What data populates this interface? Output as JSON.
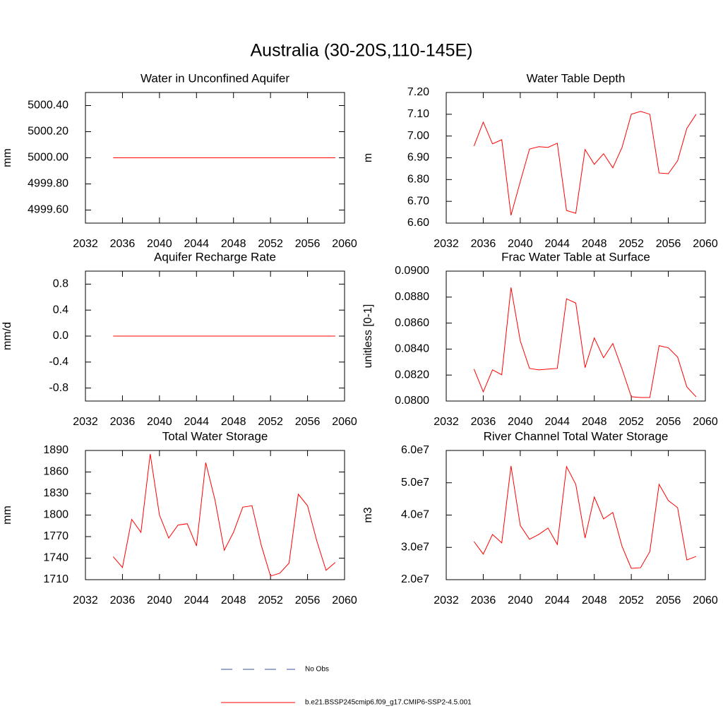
{
  "title": "Australia (30-20S,110-145E)",
  "legend": [
    {
      "name": "No Obs",
      "color": "#3b4fa0",
      "dashed": true
    },
    {
      "name": "b.e21.BSSP245cmip6.f09_g17.CMIP6-SSP2-4.5.001",
      "color": "#ff0000",
      "dashed": false
    }
  ],
  "chart_data": [
    {
      "type": "line",
      "title": "Water in Unconfined Aquifer",
      "y_label": "mm",
      "x": [
        2035,
        2036,
        2037,
        2038,
        2039,
        2040,
        2041,
        2042,
        2043,
        2044,
        2045,
        2046,
        2047,
        2048,
        2049,
        2050,
        2051,
        2052,
        2053,
        2054,
        2055,
        2056,
        2057,
        2058,
        2059
      ],
      "xlim": [
        2032,
        2060
      ],
      "xticks": [
        2032,
        2036,
        2040,
        2044,
        2048,
        2052,
        2056,
        2060
      ],
      "ylim": [
        4999.5,
        5000.5
      ],
      "yticks": [
        {
          "value": 4999.6,
          "label": "4999.60"
        },
        {
          "value": 4999.8,
          "label": "4999.80"
        },
        {
          "value": 5000.0,
          "label": "5000.00"
        },
        {
          "value": 5000.2,
          "label": "5000.20"
        },
        {
          "value": 5000.4,
          "label": "5000.40"
        }
      ],
      "series": [
        {
          "color": "#ff0000",
          "values": [
            5000,
            5000,
            5000,
            5000,
            5000,
            5000,
            5000,
            5000,
            5000,
            5000,
            5000,
            5000,
            5000,
            5000,
            5000,
            5000,
            5000,
            5000,
            5000,
            5000,
            5000,
            5000,
            5000,
            5000,
            5000
          ]
        }
      ]
    },
    {
      "type": "line",
      "title": "Water Table Depth",
      "y_label": "m",
      "x": [
        2035,
        2036,
        2037,
        2038,
        2039,
        2040,
        2041,
        2042,
        2043,
        2044,
        2045,
        2046,
        2047,
        2048,
        2049,
        2050,
        2051,
        2052,
        2053,
        2054,
        2055,
        2056,
        2057,
        2058,
        2059
      ],
      "xlim": [
        2032,
        2060
      ],
      "xticks": [
        2032,
        2036,
        2040,
        2044,
        2048,
        2052,
        2056,
        2060
      ],
      "ylim": [
        6.6,
        7.2
      ],
      "yticks": [
        {
          "value": 6.6,
          "label": "6.60"
        },
        {
          "value": 6.7,
          "label": "6.70"
        },
        {
          "value": 6.8,
          "label": "6.80"
        },
        {
          "value": 6.9,
          "label": "6.90"
        },
        {
          "value": 7.0,
          "label": "7.00"
        },
        {
          "value": 7.1,
          "label": "7.10"
        },
        {
          "value": 7.2,
          "label": "7.20"
        }
      ],
      "series": [
        {
          "color": "#ff0000",
          "values": [
            6.954,
            7.064,
            6.964,
            6.983,
            6.636,
            6.79,
            6.94,
            6.951,
            6.948,
            6.967,
            6.658,
            6.645,
            6.938,
            6.87,
            6.919,
            6.854,
            6.948,
            7.1,
            7.113,
            7.1,
            6.83,
            6.827,
            6.886,
            7.035,
            7.1
          ]
        }
      ]
    },
    {
      "type": "line",
      "title": "Aquifer Recharge Rate",
      "y_label": "mm/d",
      "x": [
        2035,
        2036,
        2037,
        2038,
        2039,
        2040,
        2041,
        2042,
        2043,
        2044,
        2045,
        2046,
        2047,
        2048,
        2049,
        2050,
        2051,
        2052,
        2053,
        2054,
        2055,
        2056,
        2057,
        2058,
        2059
      ],
      "xlim": [
        2032,
        2060
      ],
      "xticks": [
        2032,
        2036,
        2040,
        2044,
        2048,
        2052,
        2056,
        2060
      ],
      "ylim": [
        -1,
        1
      ],
      "yticks": [
        -0.8,
        -0.4,
        {
          "value": 0,
          "label": "0.0"
        },
        0.4,
        0.8
      ],
      "series": [
        {
          "color": "#ff0000",
          "values": [
            0,
            0,
            0,
            0,
            0,
            0,
            0,
            0,
            0,
            0,
            0,
            0,
            0,
            0,
            0,
            0,
            0,
            0,
            0,
            0,
            0,
            0,
            0,
            0,
            0
          ]
        }
      ]
    },
    {
      "type": "line",
      "title": "Frac Water Table at Surface",
      "y_label": "unitless [0-1]",
      "x": [
        2035,
        2036,
        2037,
        2038,
        2039,
        2040,
        2041,
        2042,
        2043,
        2044,
        2045,
        2046,
        2047,
        2048,
        2049,
        2050,
        2051,
        2052,
        2053,
        2054,
        2055,
        2056,
        2057,
        2058,
        2059
      ],
      "xlim": [
        2032,
        2060
      ],
      "xticks": [
        2032,
        2036,
        2040,
        2044,
        2048,
        2052,
        2056,
        2060
      ],
      "ylim": [
        0.08,
        0.09
      ],
      "yticks": [
        {
          "value": 0.08,
          "label": "0.0800"
        },
        {
          "value": 0.082,
          "label": "0.0820"
        },
        {
          "value": 0.084,
          "label": "0.0840"
        },
        {
          "value": 0.086,
          "label": "0.0860"
        },
        {
          "value": 0.088,
          "label": "0.0880"
        },
        {
          "value": 0.09,
          "label": "0.0900"
        }
      ],
      "series": [
        {
          "color": "#ff0000",
          "values": [
            0.08246,
            0.08071,
            0.0824,
            0.08202,
            0.08874,
            0.08464,
            0.08251,
            0.0824,
            0.08246,
            0.08251,
            0.08787,
            0.08754,
            0.08257,
            0.08486,
            0.08333,
            0.08443,
            0.08246,
            0.08033,
            0.08027,
            0.08027,
            0.08426,
            0.0841,
            0.08339,
            0.08109,
            0.08033
          ]
        }
      ]
    },
    {
      "type": "line",
      "title": "Total Water Storage",
      "y_label": "mm",
      "x": [
        2035,
        2036,
        2037,
        2038,
        2039,
        2040,
        2041,
        2042,
        2043,
        2044,
        2045,
        2046,
        2047,
        2048,
        2049,
        2050,
        2051,
        2052,
        2053,
        2054,
        2055,
        2056,
        2057,
        2058,
        2059
      ],
      "xlim": [
        2032,
        2060
      ],
      "xticks": [
        2032,
        2036,
        2040,
        2044,
        2048,
        2052,
        2056,
        2060
      ],
      "ylim": [
        1710,
        1890
      ],
      "yticks": [
        1710,
        1740,
        1770,
        1800,
        1830,
        1860,
        1890
      ],
      "series": [
        {
          "color": "#ff0000",
          "values": [
            1742,
            1727,
            1794,
            1776,
            1885,
            1800,
            1768,
            1786,
            1788,
            1757,
            1873,
            1821,
            1751,
            1776,
            1811,
            1813,
            1758,
            1715,
            1719,
            1733,
            1829,
            1813,
            1764,
            1723,
            1734
          ]
        }
      ]
    },
    {
      "type": "line",
      "title": "River Channel Total Water Storage",
      "y_label": "m3",
      "x": [
        2035,
        2036,
        2037,
        2038,
        2039,
        2040,
        2041,
        2042,
        2043,
        2044,
        2045,
        2046,
        2047,
        2048,
        2049,
        2050,
        2051,
        2052,
        2053,
        2054,
        2055,
        2056,
        2057,
        2058,
        2059
      ],
      "xlim": [
        2032,
        2060
      ],
      "xticks": [
        2032,
        2036,
        2040,
        2044,
        2048,
        2052,
        2056,
        2060
      ],
      "ylim": [
        20000000,
        60000000
      ],
      "yticks": [
        {
          "value": 20000000,
          "label": "2.0e7"
        },
        {
          "value": 30000000,
          "label": "3.0e7"
        },
        {
          "value": 40000000,
          "label": "4.0e7"
        },
        {
          "value": 50000000,
          "label": "5.0e7"
        },
        {
          "value": 60000000,
          "label": "6.0e7"
        }
      ],
      "series": [
        {
          "color": "#ff0000",
          "values": [
            31800000,
            27900000,
            34000000,
            31400000,
            55200000,
            36800000,
            32500000,
            34000000,
            36000000,
            30900000,
            55000000,
            49500000,
            32900000,
            45600000,
            38800000,
            40800000,
            30300000,
            23500000,
            23700000,
            28700000,
            49500000,
            44500000,
            42300000,
            26100000,
            27200000
          ]
        }
      ]
    }
  ]
}
